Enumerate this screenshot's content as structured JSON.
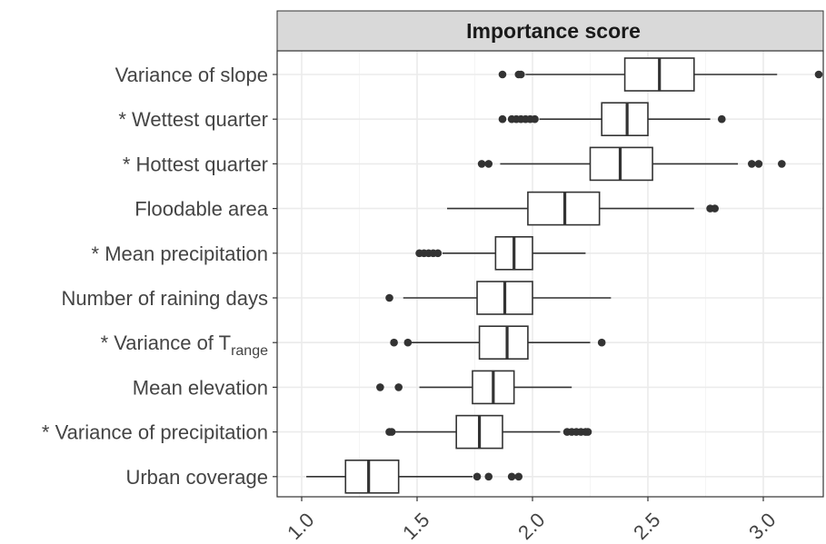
{
  "chart_data": {
    "type": "boxplot",
    "orientation": "horizontal",
    "facet_title": "Importance score",
    "xlabel": "",
    "ylabel": "",
    "xlim": [
      0.9,
      3.3
    ],
    "x_ticks": [
      1.0,
      1.5,
      2.0,
      2.5,
      3.0
    ],
    "x_tick_labels": [
      "1.0",
      "1.5",
      "2.0",
      "2.5",
      "3.0"
    ],
    "grid": true,
    "legend": "none",
    "categories": [
      {
        "label": "Variance of slope",
        "sub": ""
      },
      {
        "label": "* Wettest quarter",
        "sub": ""
      },
      {
        "label": "* Hottest quarter",
        "sub": ""
      },
      {
        "label": "Floodable area",
        "sub": ""
      },
      {
        "label": "* Mean precipitation",
        "sub": ""
      },
      {
        "label": "Number of raining days",
        "sub": ""
      },
      {
        "label": "* Variance of T",
        "sub": "range"
      },
      {
        "label": "Mean elevation",
        "sub": ""
      },
      {
        "label": "* Variance of precipitation",
        "sub": ""
      },
      {
        "label": "Urban coverage",
        "sub": ""
      }
    ],
    "boxes": [
      {
        "whisker_low": 1.97,
        "q1": 2.4,
        "median": 2.55,
        "q3": 2.7,
        "whisker_high": 3.06,
        "outliers": [
          1.87,
          1.94,
          1.95,
          3.24
        ]
      },
      {
        "whisker_low": 2.03,
        "q1": 2.3,
        "median": 2.41,
        "q3": 2.5,
        "whisker_high": 2.77,
        "outliers": [
          1.87,
          1.91,
          1.93,
          1.95,
          1.97,
          1.99,
          2.01,
          2.82
        ]
      },
      {
        "whisker_low": 1.86,
        "q1": 2.25,
        "median": 2.38,
        "q3": 2.52,
        "whisker_high": 2.89,
        "outliers": [
          1.78,
          1.81,
          2.95,
          2.98,
          3.08
        ]
      },
      {
        "whisker_low": 1.63,
        "q1": 1.98,
        "median": 2.14,
        "q3": 2.29,
        "whisker_high": 2.7,
        "outliers": [
          2.77,
          2.79
        ]
      },
      {
        "whisker_low": 1.61,
        "q1": 1.84,
        "median": 1.92,
        "q3": 2.0,
        "whisker_high": 2.23,
        "outliers": [
          1.51,
          1.53,
          1.55,
          1.57,
          1.59
        ]
      },
      {
        "whisker_low": 1.44,
        "q1": 1.76,
        "median": 1.88,
        "q3": 2.0,
        "whisker_high": 2.34,
        "outliers": [
          1.38
        ]
      },
      {
        "whisker_low": 1.47,
        "q1": 1.77,
        "median": 1.89,
        "q3": 1.98,
        "whisker_high": 2.25,
        "outliers": [
          1.4,
          1.46,
          2.3
        ]
      },
      {
        "whisker_low": 1.51,
        "q1": 1.74,
        "median": 1.83,
        "q3": 1.92,
        "whisker_high": 2.17,
        "outliers": [
          1.34,
          1.42
        ]
      },
      {
        "whisker_low": 1.4,
        "q1": 1.67,
        "median": 1.77,
        "q3": 1.87,
        "whisker_high": 2.12,
        "outliers": [
          1.38,
          1.39,
          2.15,
          2.17,
          2.19,
          2.21,
          2.23,
          2.24
        ]
      },
      {
        "whisker_low": 1.02,
        "q1": 1.19,
        "median": 1.29,
        "q3": 1.42,
        "whisker_high": 1.74,
        "outliers": [
          1.76,
          1.81,
          1.91,
          1.94
        ]
      }
    ],
    "colors": {
      "box_outline": "#333333",
      "outlier": "#333333",
      "strip_fill": "#d9d9d9",
      "panel_border": "#333333",
      "grid_major": "#ebebeb",
      "grid_minor": "#f5f5f5",
      "tick_text": "#444444"
    }
  }
}
